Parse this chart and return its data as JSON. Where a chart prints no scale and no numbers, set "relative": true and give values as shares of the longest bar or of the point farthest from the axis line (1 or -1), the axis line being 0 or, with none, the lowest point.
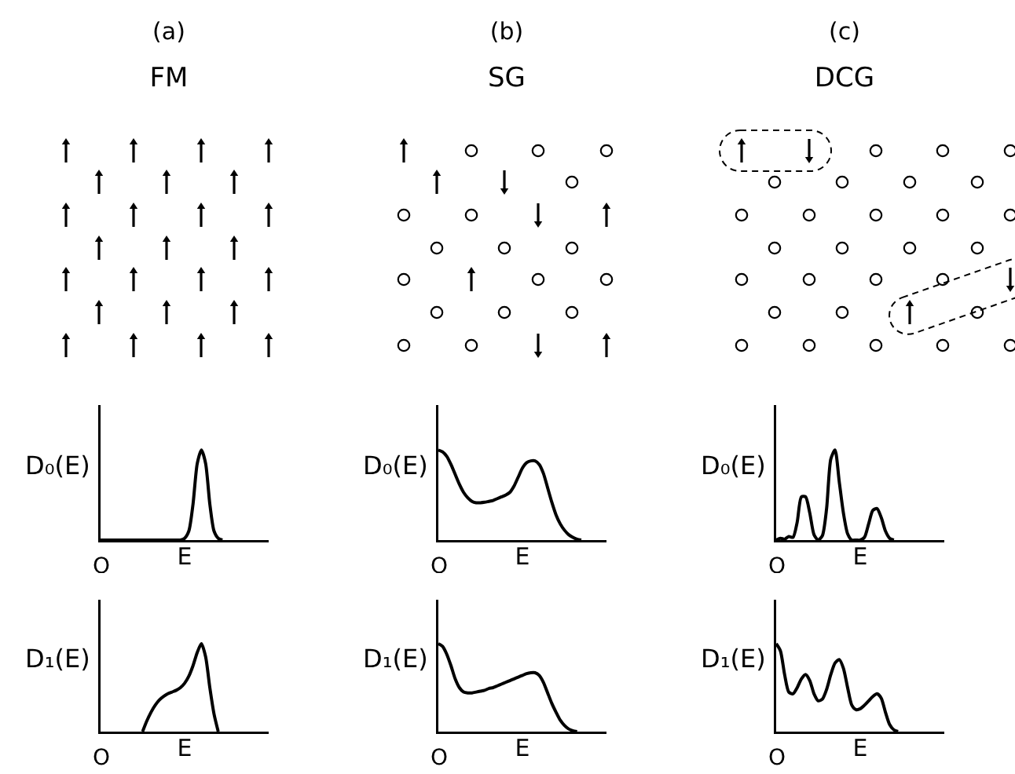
{
  "chart_data": [
    {
      "type": "line",
      "title": "(a)",
      "subtitle": "FM",
      "xlabel": "E",
      "ylabel": "D₀(E)",
      "annotations": [
        "O"
      ],
      "relative": true,
      "color": "#000000",
      "categories": [
        null,
        null,
        null,
        null,
        null,
        null,
        null,
        null,
        null,
        null,
        null,
        null,
        null,
        null,
        null,
        null,
        null,
        null,
        null,
        null,
        null,
        null,
        null,
        null,
        null,
        null,
        null,
        null,
        null,
        null,
        null,
        null,
        null,
        null,
        null,
        null,
        null,
        null,
        null,
        null,
        null
      ],
      "values": [
        0,
        0,
        0,
        0,
        0,
        0,
        0,
        0,
        0,
        0,
        0,
        0,
        0,
        0,
        0,
        0,
        0,
        0,
        0,
        0,
        0.02,
        0.1,
        0.4,
        0.85,
        1,
        0.85,
        0.4,
        0.1,
        0.02,
        0,
        null,
        null,
        null,
        null,
        null,
        null,
        null,
        null,
        null,
        null,
        null
      ]
    },
    {
      "type": "line",
      "title": "(b)",
      "subtitle": "SG",
      "xlabel": "E",
      "ylabel": "D₀(E)",
      "annotations": [
        "O"
      ],
      "relative": true,
      "color": "#000000",
      "categories": [
        null,
        null,
        null,
        null,
        null,
        null,
        null,
        null,
        null,
        null,
        null,
        null,
        null,
        null,
        null,
        null,
        null,
        null,
        null,
        null,
        null,
        null,
        null,
        null,
        null,
        null,
        null,
        null,
        null,
        null,
        null,
        null,
        null,
        null,
        null,
        null,
        null,
        null,
        null,
        null,
        null
      ],
      "values": [
        1,
        0.98,
        0.93,
        0.84,
        0.73,
        0.62,
        0.53,
        0.47,
        0.43,
        0.415,
        0.415,
        0.42,
        0.43,
        0.44,
        0.46,
        0.48,
        0.5,
        0.53,
        0.6,
        0.7,
        0.8,
        0.86,
        0.88,
        0.88,
        0.84,
        0.74,
        0.58,
        0.42,
        0.28,
        0.18,
        0.11,
        0.06,
        0.03,
        0.01,
        0,
        null,
        null,
        null,
        null,
        null,
        null
      ]
    },
    {
      "type": "line",
      "title": "(c)",
      "subtitle": "DCG",
      "xlabel": "E",
      "ylabel": "D₀(E)",
      "annotations": [
        "O"
      ],
      "relative": true,
      "color": "#000000",
      "categories": [
        null,
        null,
        null,
        null,
        null,
        null,
        null,
        null,
        null,
        null,
        null,
        null,
        null,
        null,
        null,
        null,
        null,
        null,
        null,
        null,
        null,
        null,
        null,
        null,
        null,
        null,
        null,
        null,
        null,
        null,
        null,
        null,
        null,
        null,
        null,
        null,
        null,
        null,
        null,
        null,
        null
      ],
      "values": [
        0,
        0.02,
        0.01,
        0.04,
        0.03,
        0.2,
        0.48,
        0.48,
        0.3,
        0.06,
        0,
        0.05,
        0.35,
        0.9,
        1,
        0.65,
        0.3,
        0.07,
        0,
        0,
        0,
        0.03,
        0.18,
        0.33,
        0.35,
        0.25,
        0.1,
        0.02,
        0,
        null,
        null,
        null,
        null,
        null,
        null,
        null,
        null,
        null,
        null,
        null,
        null
      ]
    },
    {
      "type": "line",
      "xlabel": "E",
      "ylabel": "D₁(E)",
      "annotations": [
        "O"
      ],
      "relative": true,
      "color": "#000000",
      "categories": [
        null,
        null,
        null,
        null,
        null,
        null,
        null,
        null,
        null,
        null,
        null,
        null,
        null,
        null,
        null,
        null,
        null,
        null,
        null,
        null,
        null,
        null,
        null,
        null,
        null,
        null,
        null,
        null,
        null,
        null,
        null,
        null,
        null,
        null,
        null,
        null,
        null,
        null,
        null,
        null,
        null
      ],
      "values": [
        null,
        null,
        null,
        null,
        null,
        null,
        null,
        null,
        null,
        null,
        0,
        0.12,
        0.22,
        0.3,
        0.36,
        0.4,
        0.43,
        0.45,
        0.47,
        0.5,
        0.55,
        0.63,
        0.75,
        0.9,
        1,
        0.85,
        0.5,
        0.2,
        0,
        null,
        null,
        null,
        null,
        null,
        null,
        null,
        null,
        null,
        null,
        null,
        null
      ]
    },
    {
      "type": "line",
      "xlabel": "E",
      "ylabel": "D₁(E)",
      "annotations": [
        "O"
      ],
      "relative": true,
      "color": "#000000",
      "categories": [
        null,
        null,
        null,
        null,
        null,
        null,
        null,
        null,
        null,
        null,
        null,
        null,
        null,
        null,
        null,
        null,
        null,
        null,
        null,
        null,
        null,
        null,
        null,
        null,
        null,
        null,
        null,
        null,
        null,
        null,
        null,
        null,
        null,
        null,
        null,
        null,
        null,
        null,
        null,
        null,
        null
      ],
      "values": [
        1,
        0.97,
        0.88,
        0.75,
        0.6,
        0.5,
        0.45,
        0.44,
        0.44,
        0.45,
        0.46,
        0.47,
        0.49,
        0.5,
        0.52,
        0.54,
        0.56,
        0.58,
        0.6,
        0.62,
        0.64,
        0.66,
        0.67,
        0.67,
        0.64,
        0.56,
        0.44,
        0.32,
        0.22,
        0.13,
        0.07,
        0.03,
        0.01,
        0,
        null,
        null,
        null,
        null,
        null,
        null,
        null
      ]
    },
    {
      "type": "line",
      "xlabel": "E",
      "ylabel": "D₁(E)",
      "annotations": [
        "O"
      ],
      "relative": true,
      "color": "#000000",
      "categories": [
        null,
        null,
        null,
        null,
        null,
        null,
        null,
        null,
        null,
        null,
        null,
        null,
        null,
        null,
        null,
        null,
        null,
        null,
        null,
        null,
        null,
        null,
        null,
        null,
        null,
        null,
        null,
        null,
        null,
        null,
        null,
        null,
        null,
        null,
        null,
        null,
        null,
        null,
        null,
        null,
        null
      ],
      "values": [
        1,
        0.92,
        0.65,
        0.45,
        0.43,
        0.5,
        0.6,
        0.65,
        0.58,
        0.43,
        0.35,
        0.37,
        0.48,
        0.65,
        0.78,
        0.82,
        0.72,
        0.5,
        0.3,
        0.25,
        0.26,
        0.3,
        0.35,
        0.4,
        0.43,
        0.38,
        0.22,
        0.08,
        0.02,
        0,
        null,
        null,
        null,
        null,
        null,
        null,
        null,
        null,
        null,
        null,
        null
      ]
    }
  ]
}
